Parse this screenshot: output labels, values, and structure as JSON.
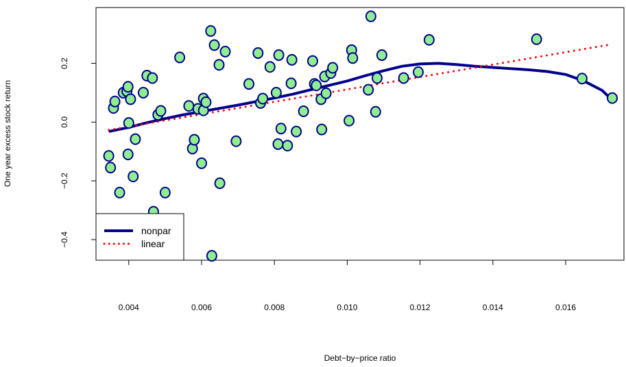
{
  "chart_data": {
    "type": "scatter",
    "title": "",
    "xlabel": "Debt−by−price ratio",
    "ylabel": "One year excess stock return",
    "xlim": [
      0.0031,
      0.0176
    ],
    "ylim": [
      -0.47,
      0.39
    ],
    "x_ticks": [
      {
        "value": 0.004,
        "label": "0.004"
      },
      {
        "value": 0.006,
        "label": "0.006"
      },
      {
        "value": 0.008,
        "label": "0.008"
      },
      {
        "value": 0.01,
        "label": "0.010"
      },
      {
        "value": 0.012,
        "label": "0.012"
      },
      {
        "value": 0.014,
        "label": "0.014"
      },
      {
        "value": 0.016,
        "label": "0.016"
      }
    ],
    "y_ticks": [
      {
        "value": -0.4,
        "label": "−0.4"
      },
      {
        "value": -0.2,
        "label": "−0.2"
      },
      {
        "value": 0.0,
        "label": "0.0"
      },
      {
        "value": 0.2,
        "label": "0.2"
      }
    ],
    "grid": false,
    "legend_position": "bottom-left",
    "legend": [
      {
        "label": "nonpar",
        "color": "#00008b",
        "style": "solid"
      },
      {
        "label": "linear",
        "color": "#ff0000",
        "style": "dotted"
      }
    ],
    "point_fill": "#90ee90",
    "point_stroke": "#00008b",
    "points": [
      [
        0.00345,
        -0.115
      ],
      [
        0.0035,
        -0.155
      ],
      [
        0.00358,
        0.048
      ],
      [
        0.00362,
        0.07
      ],
      [
        0.00375,
        -0.24
      ],
      [
        0.00385,
        0.1
      ],
      [
        0.00395,
        0.105
      ],
      [
        0.00398,
        0.12
      ],
      [
        0.00398,
        -0.11
      ],
      [
        0.004,
        -0.003
      ],
      [
        0.00405,
        0.078
      ],
      [
        0.00412,
        -0.185
      ],
      [
        0.00418,
        -0.058
      ],
      [
        0.0044,
        0.1
      ],
      [
        0.0045,
        0.158
      ],
      [
        0.00465,
        0.15
      ],
      [
        0.00468,
        -0.305
      ],
      [
        0.0048,
        0.025
      ],
      [
        0.00488,
        0.038
      ],
      [
        0.005,
        -0.24
      ],
      [
        0.0054,
        0.22
      ],
      [
        0.00565,
        0.055
      ],
      [
        0.00575,
        -0.09
      ],
      [
        0.0058,
        -0.06
      ],
      [
        0.0059,
        0.045
      ],
      [
        0.006,
        -0.14
      ],
      [
        0.00605,
        0.04
      ],
      [
        0.00605,
        0.08
      ],
      [
        0.00612,
        0.068
      ],
      [
        0.00625,
        0.31
      ],
      [
        0.00628,
        -0.455
      ],
      [
        0.00635,
        0.262
      ],
      [
        0.00648,
        0.195
      ],
      [
        0.0065,
        -0.208
      ],
      [
        0.00665,
        0.24
      ],
      [
        0.00695,
        -0.065
      ],
      [
        0.0073,
        0.13
      ],
      [
        0.00755,
        0.235
      ],
      [
        0.00762,
        0.065
      ],
      [
        0.00768,
        0.08
      ],
      [
        0.00788,
        0.188
      ],
      [
        0.00805,
        0.1
      ],
      [
        0.0081,
        -0.075
      ],
      [
        0.00812,
        0.228
      ],
      [
        0.00818,
        -0.022
      ],
      [
        0.00836,
        -0.08
      ],
      [
        0.00846,
        0.132
      ],
      [
        0.00848,
        0.212
      ],
      [
        0.0086,
        -0.032
      ],
      [
        0.0088,
        0.037
      ],
      [
        0.00905,
        0.208
      ],
      [
        0.0091,
        0.13
      ],
      [
        0.00915,
        0.125
      ],
      [
        0.00928,
        0.078
      ],
      [
        0.0093,
        -0.025
      ],
      [
        0.00938,
        0.155
      ],
      [
        0.00942,
        0.098
      ],
      [
        0.00955,
        0.167
      ],
      [
        0.0096,
        0.185
      ],
      [
        0.01005,
        0.005
      ],
      [
        0.01012,
        0.245
      ],
      [
        0.01015,
        0.218
      ],
      [
        0.01058,
        0.11
      ],
      [
        0.01065,
        0.36
      ],
      [
        0.01078,
        0.035
      ],
      [
        0.01082,
        0.15
      ],
      [
        0.01095,
        0.228
      ],
      [
        0.01155,
        0.15
      ],
      [
        0.01195,
        0.17
      ],
      [
        0.01225,
        0.28
      ],
      [
        0.0152,
        0.282
      ],
      [
        0.01645,
        0.148
      ],
      [
        0.01728,
        0.082
      ]
    ],
    "series": [
      {
        "name": "nonpar",
        "color": "#00008b",
        "x": [
          0.00345,
          0.004,
          0.0045,
          0.005,
          0.0055,
          0.006,
          0.0065,
          0.007,
          0.0075,
          0.008,
          0.0085,
          0.009,
          0.0095,
          0.01,
          0.0105,
          0.011,
          0.0115,
          0.012,
          0.0125,
          0.013,
          0.0135,
          0.014,
          0.0145,
          0.015,
          0.0155,
          0.016,
          0.0165,
          0.017,
          0.01728
        ],
        "y": [
          -0.032,
          -0.018,
          -0.002,
          0.012,
          0.025,
          0.036,
          0.047,
          0.058,
          0.07,
          0.082,
          0.095,
          0.11,
          0.125,
          0.14,
          0.158,
          0.175,
          0.19,
          0.198,
          0.2,
          0.196,
          0.19,
          0.186,
          0.182,
          0.178,
          0.172,
          0.162,
          0.14,
          0.108,
          0.075
        ]
      },
      {
        "name": "linear",
        "color": "#ff0000",
        "x": [
          0.00345,
          0.01728
        ],
        "y": [
          -0.027,
          0.265
        ]
      }
    ]
  }
}
